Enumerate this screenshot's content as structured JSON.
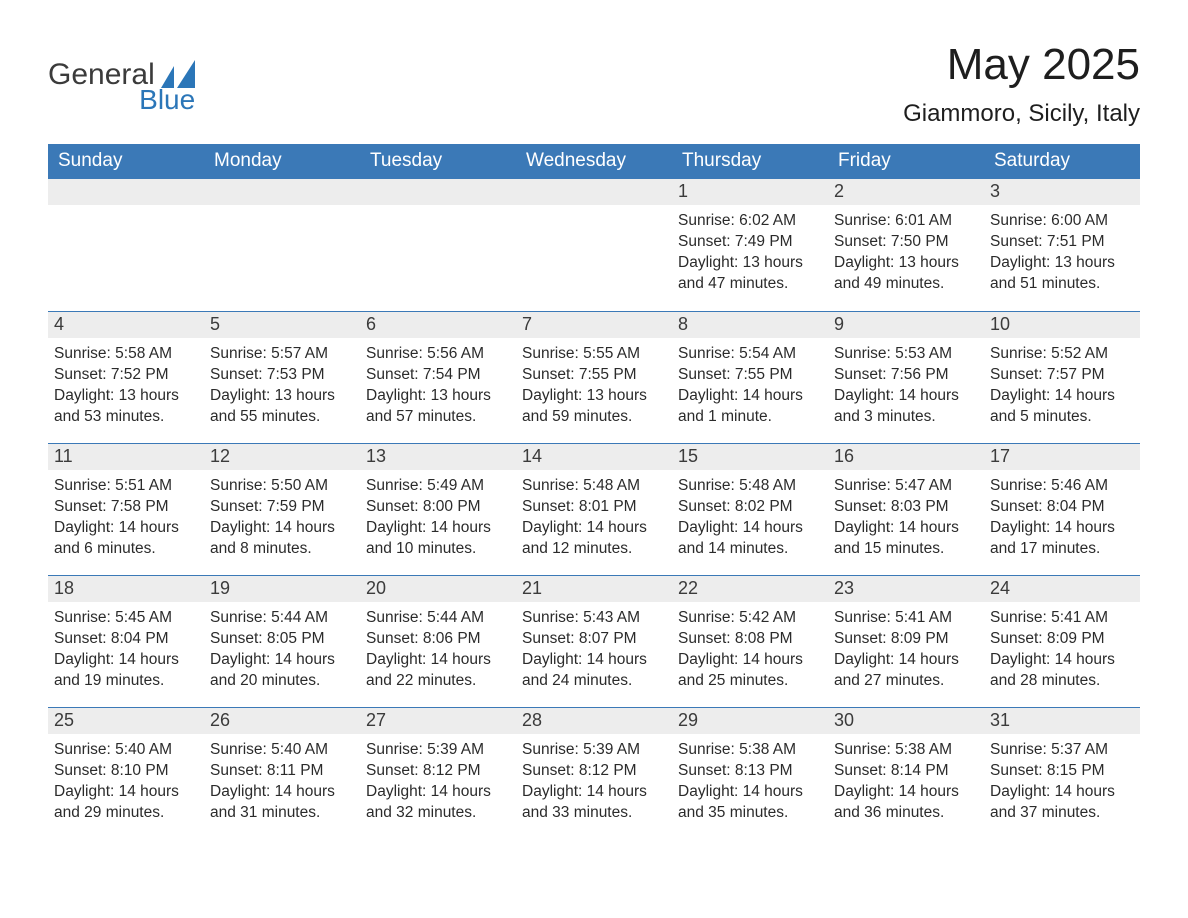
{
  "logo": {
    "text1": "General",
    "text2": "Blue"
  },
  "title": "May 2025",
  "subtitle": "Giammoro, Sicily, Italy",
  "colors": {
    "header_bg": "#3b79b7",
    "header_text": "#ffffff",
    "daynum_bg": "#ededed",
    "border": "#3b79b7",
    "body_text": "#2b2b2b",
    "logo_blue": "#2b76b8",
    "logo_gray": "#3b3b3b",
    "page_bg": "#ffffff"
  },
  "typography": {
    "title_fontsize": 44,
    "subtitle_fontsize": 24,
    "header_cell_fontsize": 19,
    "daynum_fontsize": 18,
    "body_fontsize": 15.5,
    "font_family": "Arial"
  },
  "columns": [
    "Sunday",
    "Monday",
    "Tuesday",
    "Wednesday",
    "Thursday",
    "Friday",
    "Saturday"
  ],
  "weeks": [
    [
      {
        "empty": true
      },
      {
        "empty": true
      },
      {
        "empty": true
      },
      {
        "empty": true
      },
      {
        "n": "1",
        "sunrise": "6:02 AM",
        "sunset": "7:49 PM",
        "daylight": "13 hours and 47 minutes."
      },
      {
        "n": "2",
        "sunrise": "6:01 AM",
        "sunset": "7:50 PM",
        "daylight": "13 hours and 49 minutes."
      },
      {
        "n": "3",
        "sunrise": "6:00 AM",
        "sunset": "7:51 PM",
        "daylight": "13 hours and 51 minutes."
      }
    ],
    [
      {
        "n": "4",
        "sunrise": "5:58 AM",
        "sunset": "7:52 PM",
        "daylight": "13 hours and 53 minutes."
      },
      {
        "n": "5",
        "sunrise": "5:57 AM",
        "sunset": "7:53 PM",
        "daylight": "13 hours and 55 minutes."
      },
      {
        "n": "6",
        "sunrise": "5:56 AM",
        "sunset": "7:54 PM",
        "daylight": "13 hours and 57 minutes."
      },
      {
        "n": "7",
        "sunrise": "5:55 AM",
        "sunset": "7:55 PM",
        "daylight": "13 hours and 59 minutes."
      },
      {
        "n": "8",
        "sunrise": "5:54 AM",
        "sunset": "7:55 PM",
        "daylight": "14 hours and 1 minute."
      },
      {
        "n": "9",
        "sunrise": "5:53 AM",
        "sunset": "7:56 PM",
        "daylight": "14 hours and 3 minutes."
      },
      {
        "n": "10",
        "sunrise": "5:52 AM",
        "sunset": "7:57 PM",
        "daylight": "14 hours and 5 minutes."
      }
    ],
    [
      {
        "n": "11",
        "sunrise": "5:51 AM",
        "sunset": "7:58 PM",
        "daylight": "14 hours and 6 minutes."
      },
      {
        "n": "12",
        "sunrise": "5:50 AM",
        "sunset": "7:59 PM",
        "daylight": "14 hours and 8 minutes."
      },
      {
        "n": "13",
        "sunrise": "5:49 AM",
        "sunset": "8:00 PM",
        "daylight": "14 hours and 10 minutes."
      },
      {
        "n": "14",
        "sunrise": "5:48 AM",
        "sunset": "8:01 PM",
        "daylight": "14 hours and 12 minutes."
      },
      {
        "n": "15",
        "sunrise": "5:48 AM",
        "sunset": "8:02 PM",
        "daylight": "14 hours and 14 minutes."
      },
      {
        "n": "16",
        "sunrise": "5:47 AM",
        "sunset": "8:03 PM",
        "daylight": "14 hours and 15 minutes."
      },
      {
        "n": "17",
        "sunrise": "5:46 AM",
        "sunset": "8:04 PM",
        "daylight": "14 hours and 17 minutes."
      }
    ],
    [
      {
        "n": "18",
        "sunrise": "5:45 AM",
        "sunset": "8:04 PM",
        "daylight": "14 hours and 19 minutes."
      },
      {
        "n": "19",
        "sunrise": "5:44 AM",
        "sunset": "8:05 PM",
        "daylight": "14 hours and 20 minutes."
      },
      {
        "n": "20",
        "sunrise": "5:44 AM",
        "sunset": "8:06 PM",
        "daylight": "14 hours and 22 minutes."
      },
      {
        "n": "21",
        "sunrise": "5:43 AM",
        "sunset": "8:07 PM",
        "daylight": "14 hours and 24 minutes."
      },
      {
        "n": "22",
        "sunrise": "5:42 AM",
        "sunset": "8:08 PM",
        "daylight": "14 hours and 25 minutes."
      },
      {
        "n": "23",
        "sunrise": "5:41 AM",
        "sunset": "8:09 PM",
        "daylight": "14 hours and 27 minutes."
      },
      {
        "n": "24",
        "sunrise": "5:41 AM",
        "sunset": "8:09 PM",
        "daylight": "14 hours and 28 minutes."
      }
    ],
    [
      {
        "n": "25",
        "sunrise": "5:40 AM",
        "sunset": "8:10 PM",
        "daylight": "14 hours and 29 minutes."
      },
      {
        "n": "26",
        "sunrise": "5:40 AM",
        "sunset": "8:11 PM",
        "daylight": "14 hours and 31 minutes."
      },
      {
        "n": "27",
        "sunrise": "5:39 AM",
        "sunset": "8:12 PM",
        "daylight": "14 hours and 32 minutes."
      },
      {
        "n": "28",
        "sunrise": "5:39 AM",
        "sunset": "8:12 PM",
        "daylight": "14 hours and 33 minutes."
      },
      {
        "n": "29",
        "sunrise": "5:38 AM",
        "sunset": "8:13 PM",
        "daylight": "14 hours and 35 minutes."
      },
      {
        "n": "30",
        "sunrise": "5:38 AM",
        "sunset": "8:14 PM",
        "daylight": "14 hours and 36 minutes."
      },
      {
        "n": "31",
        "sunrise": "5:37 AM",
        "sunset": "8:15 PM",
        "daylight": "14 hours and 37 minutes."
      }
    ]
  ],
  "labels": {
    "sunrise": "Sunrise: ",
    "sunset": "Sunset: ",
    "daylight": "Daylight: "
  }
}
